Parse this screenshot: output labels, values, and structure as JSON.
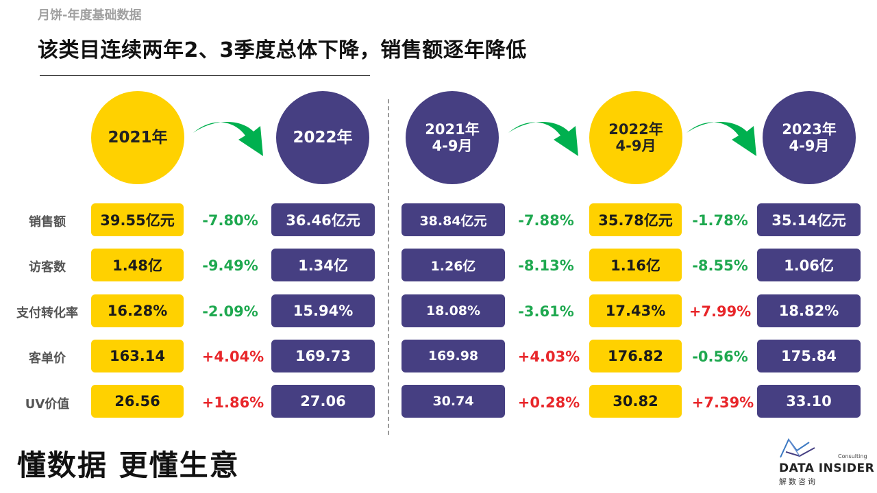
{
  "subtitle": "月饼-年度基础数据",
  "headline": "该类目连续两年2、3季度总体下降，销售额逐年降低",
  "colors": {
    "yellow": "#FFD100",
    "purple": "#463F82",
    "green": "#1EA84F",
    "red": "#E8262A",
    "arrow": "#00B04F"
  },
  "periods": {
    "y2021": "2021年",
    "y2022": "2022年",
    "q2021": "2021年\n4-9月",
    "q2022": "2022年\n4-9月",
    "q2023": "2023年\n4-9月"
  },
  "rows": [
    {
      "label": "销售额",
      "y2021": "39.55亿元",
      "c1": "-7.80%",
      "y2022": "36.46亿元",
      "q2021": "38.84亿元",
      "c2": "-7.88%",
      "q2022": "35.78亿元",
      "c3": "-1.78%",
      "q2023": "35.14亿元"
    },
    {
      "label": "访客数",
      "y2021": "1.48亿",
      "c1": "-9.49%",
      "y2022": "1.34亿",
      "q2021": "1.26亿",
      "c2": "-8.13%",
      "q2022": "1.16亿",
      "c3": "-8.55%",
      "q2023": "1.06亿"
    },
    {
      "label": "支付转化率",
      "y2021": "16.28%",
      "c1": "-2.09%",
      "y2022": "15.94%",
      "q2021": "18.08%",
      "c2": "-3.61%",
      "q2022": "17.43%",
      "c3": "+7.99%",
      "q2023": "18.82%"
    },
    {
      "label": "客单价",
      "y2021": "163.14",
      "c1": "+4.04%",
      "y2022": "169.73",
      "q2021": "169.98",
      "c2": "+4.03%",
      "q2022": "176.82",
      "c3": "-0.56%",
      "q2023": "175.84"
    },
    {
      "label": "UV价值",
      "y2021": "26.56",
      "c1": "+1.86%",
      "y2022": "27.06",
      "q2021": "30.74",
      "c2": "+0.28%",
      "q2022": "30.82",
      "c3": "+7.39%",
      "q2023": "33.10"
    }
  ],
  "slogan": "懂数据 更懂生意",
  "logo": {
    "consulting": "Consulting",
    "name": "DATA INSIDER",
    "cn": "解数咨询"
  }
}
